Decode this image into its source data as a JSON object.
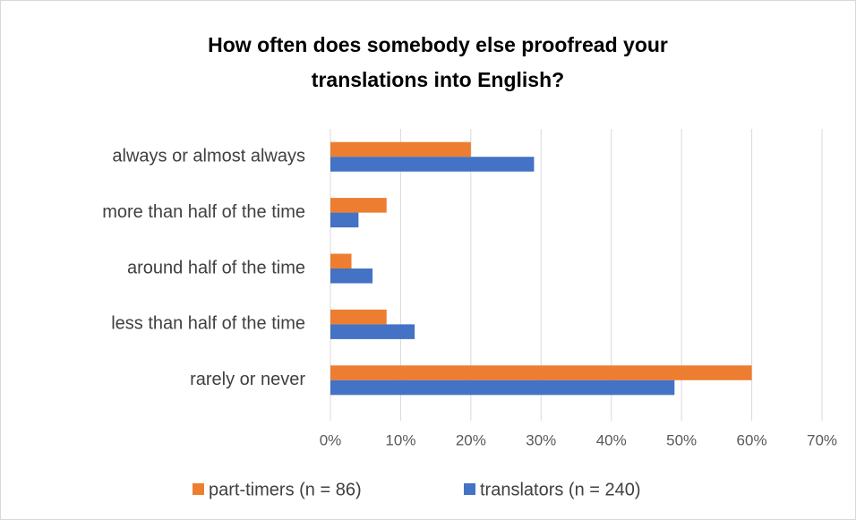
{
  "chart_data": {
    "type": "bar",
    "orientation": "horizontal",
    "title": [
      "How often does somebody else proofread your",
      "translations into English?"
    ],
    "categories": [
      "always or almost always",
      "more than half of the time",
      "around half of the time",
      "less than half of the time",
      "rarely or never"
    ],
    "series": [
      {
        "name": "part-timers (n = 86)",
        "color": "#ed7d31",
        "values": [
          20,
          8,
          3,
          8,
          60
        ]
      },
      {
        "name": "translators (n = 240)",
        "color": "#4472c4",
        "values": [
          29,
          4,
          6,
          12,
          49
        ]
      }
    ],
    "xlim": [
      0,
      70
    ],
    "xticks": [
      {
        "value": 0,
        "label": "0%"
      },
      {
        "value": 10,
        "label": "10%"
      },
      {
        "value": 20,
        "label": "20%"
      },
      {
        "value": 30,
        "label": "30%"
      },
      {
        "value": 40,
        "label": "40%"
      },
      {
        "value": 50,
        "label": "50%"
      },
      {
        "value": 60,
        "label": "60%"
      },
      {
        "value": 70,
        "label": "70%"
      }
    ],
    "grid": true,
    "legend": "bottom"
  }
}
